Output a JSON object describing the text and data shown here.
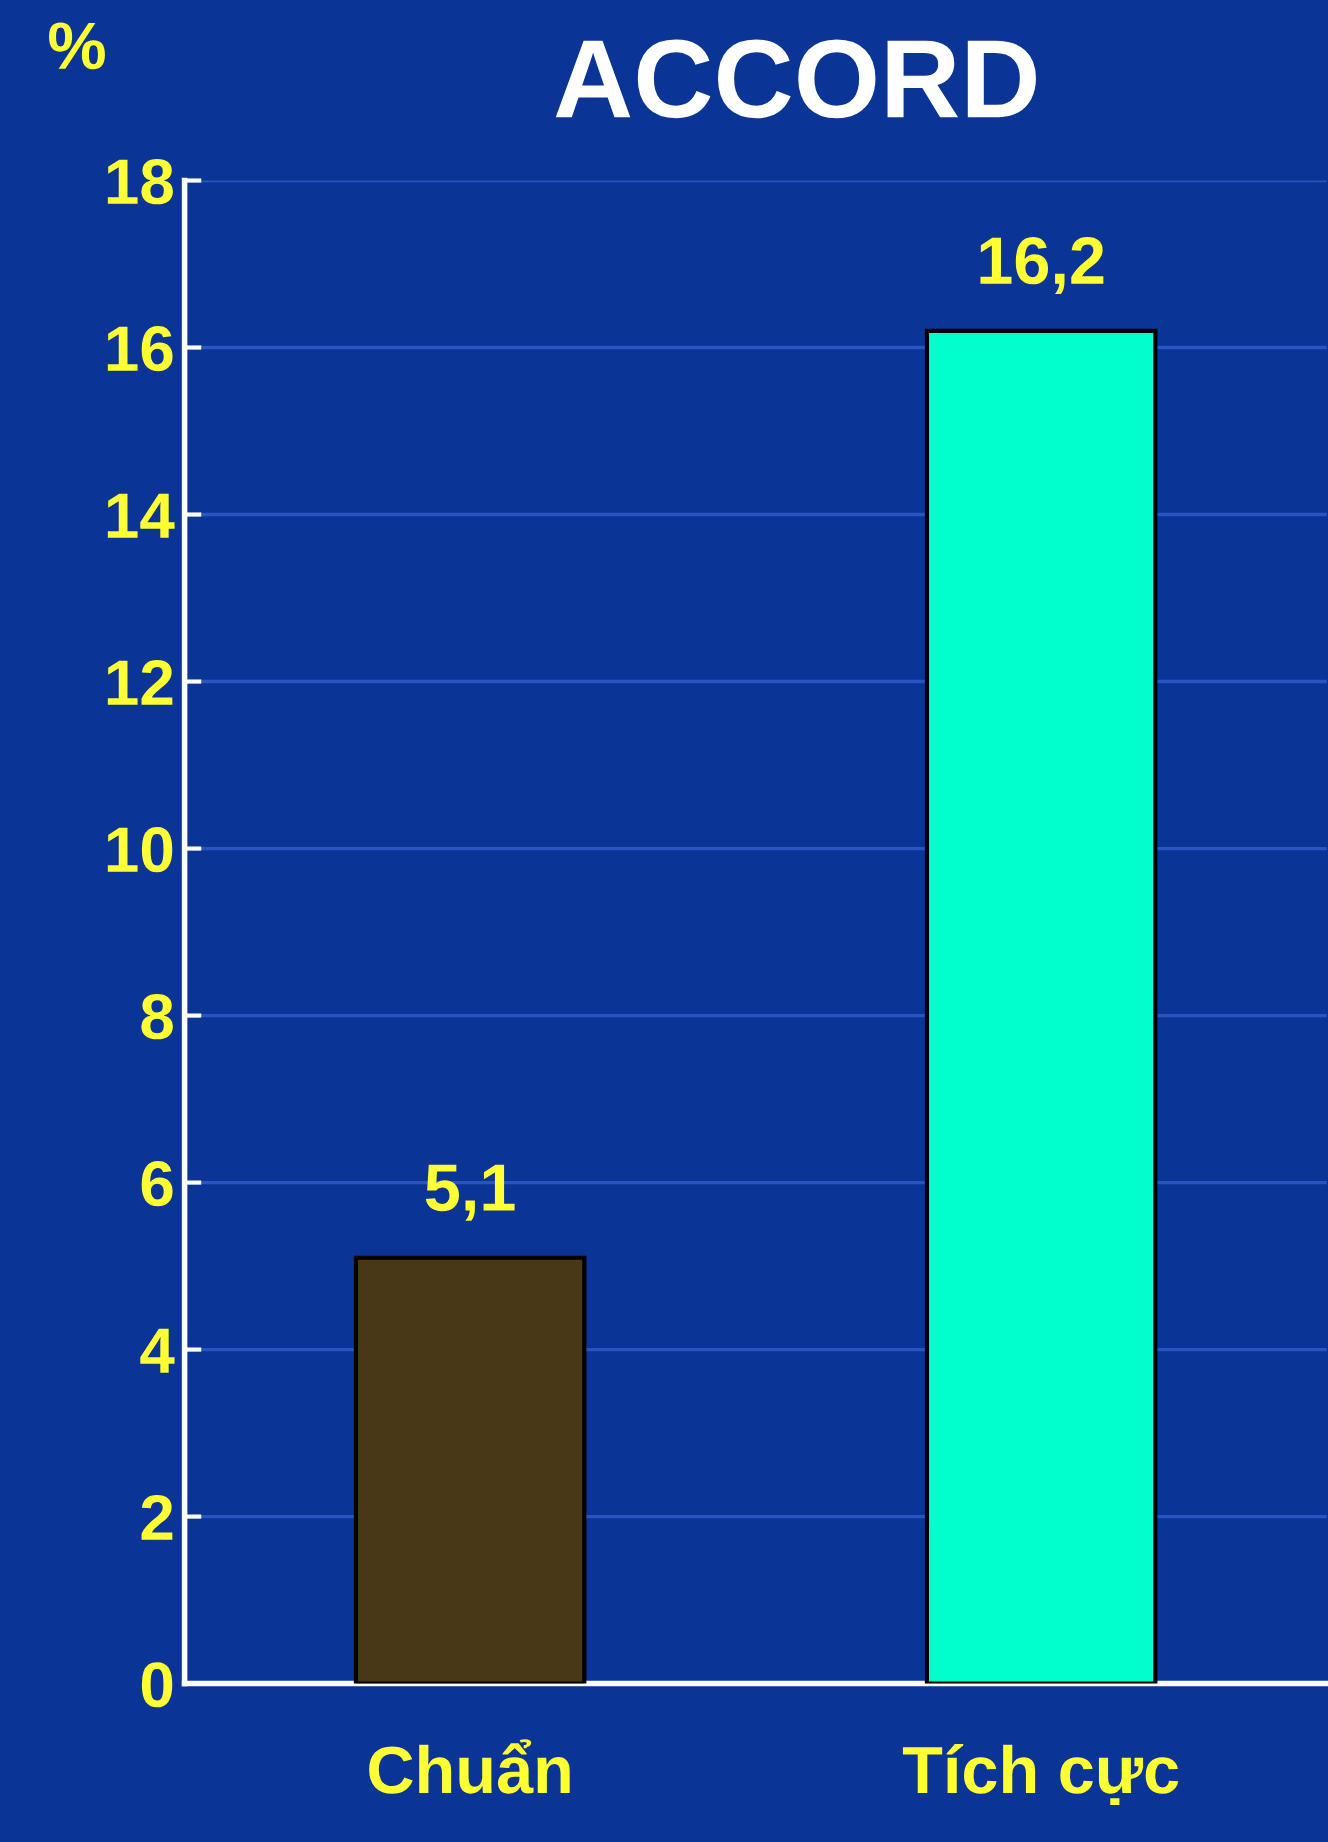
{
  "chart_data": {
    "type": "bar",
    "title": "ACCORD",
    "ylabel": "%",
    "categories": [
      "Chuẩn",
      "Tích cực"
    ],
    "values": [
      5.1,
      16.2
    ],
    "colors": [
      "#483818",
      "#00ffcc"
    ],
    "value_labels": [
      "5,1",
      "16,2"
    ],
    "ylim": [
      0,
      18
    ],
    "yticks": [
      0,
      2,
      4,
      6,
      8,
      10,
      12,
      14,
      16,
      18
    ],
    "grid": "y"
  }
}
